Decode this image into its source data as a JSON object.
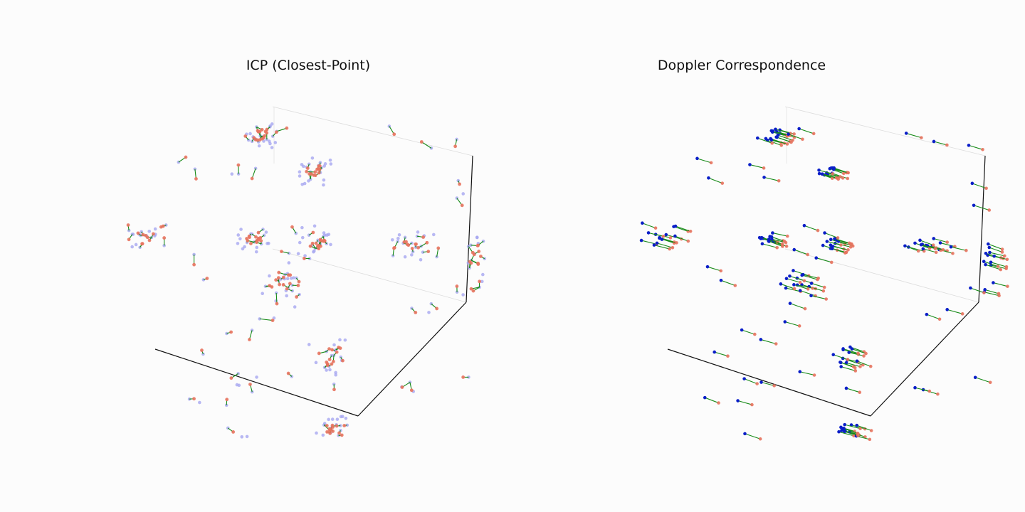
{
  "colors": {
    "source_point": "#e8735f",
    "target_point_faded": "#a6a6f0",
    "target_point": "#0a1ec8",
    "correspondence_line": "#178a17",
    "axis_line": "#111111",
    "pane_line": "#dcdcdc"
  },
  "chart_data": [
    {
      "type": "scatter",
      "title": "ICP (Closest-Point)",
      "projection": "3d",
      "grid": false,
      "tick_labels": false,
      "target_style": "faded",
      "match_mode": "closest"
    },
    {
      "type": "scatter",
      "title": "Doppler Correspondence",
      "projection": "3d",
      "grid": false,
      "tick_labels": false,
      "target_style": "solid",
      "match_mode": "doppler"
    }
  ]
}
